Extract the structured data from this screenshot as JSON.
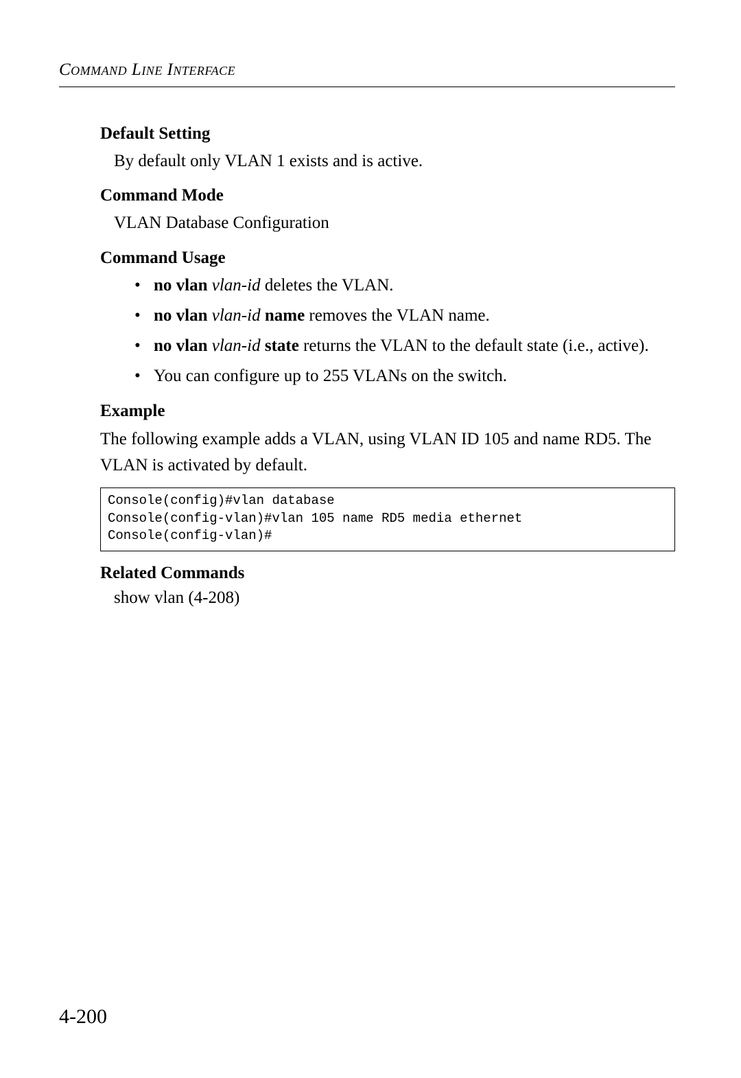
{
  "header": {
    "title": "Command Line Interface"
  },
  "sections": {
    "default_setting": {
      "heading": "Default Setting",
      "text": "By default only VLAN 1 exists and is active."
    },
    "command_mode": {
      "heading": "Command Mode",
      "text": "VLAN Database Configuration"
    },
    "command_usage": {
      "heading": "Command Usage",
      "items": [
        {
          "bold1": "no vlan",
          "italic1": "vlan-id",
          "rest": " deletes the VLAN."
        },
        {
          "bold1": "no vlan",
          "italic1": "vlan-id",
          "bold2": "name",
          "rest": " removes the VLAN name."
        },
        {
          "bold1": "no vlan",
          "italic1": "vlan-id",
          "bold2": "state",
          "rest": " returns the VLAN to the default state (i.e., active)."
        },
        {
          "plain": "You can configure up to 255 VLANs on the switch."
        }
      ]
    },
    "example": {
      "heading": "Example",
      "intro": "The following example adds a VLAN, using VLAN ID 105 and name RD5. The VLAN is activated by default.",
      "code": "Console(config)#vlan database\nConsole(config-vlan)#vlan 105 name RD5 media ethernet\nConsole(config-vlan)#"
    },
    "related_commands": {
      "heading": "Related Commands",
      "text": "show vlan (4-208)"
    }
  },
  "page_number": "4-200"
}
